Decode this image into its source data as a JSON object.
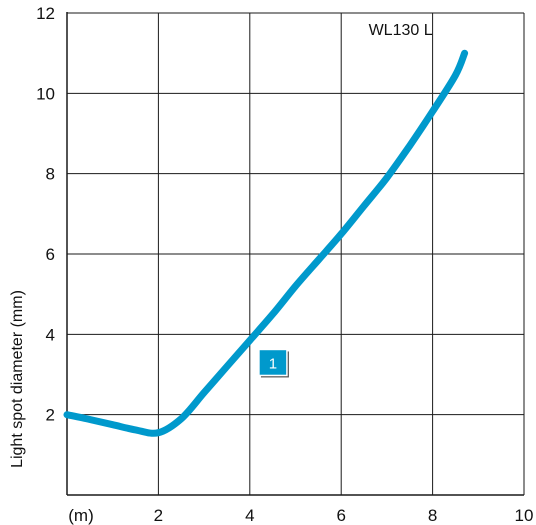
{
  "chart_data": {
    "type": "line",
    "title": "",
    "xlabel": "",
    "ylabel": "Light spot diameter (mm)",
    "xlim": [
      0,
      10
    ],
    "ylim": [
      0,
      12
    ],
    "x_ticks": [
      "(m)",
      "2",
      "4",
      "6",
      "8",
      "10"
    ],
    "y_ticks": [
      "2",
      "4",
      "6",
      "8",
      "10",
      "12"
    ],
    "grid": true,
    "series": [
      {
        "color": "#0099cc",
        "x": [
          0,
          0.5,
          1.0,
          1.5,
          2.0,
          2.5,
          3.0,
          3.5,
          4.0,
          4.5,
          5.0,
          5.5,
          6.0,
          6.5,
          7.0,
          7.5,
          8.0,
          8.5,
          8.7
        ],
        "y": [
          2.0,
          1.88,
          1.75,
          1.62,
          1.55,
          1.9,
          2.55,
          3.2,
          3.85,
          4.5,
          5.2,
          5.85,
          6.5,
          7.2,
          7.9,
          8.7,
          9.55,
          10.45,
          11.0
        ]
      }
    ],
    "annotations": [
      {
        "text": "WL130 L",
        "x": 7.3,
        "y": 11.45
      },
      {
        "text": "1",
        "x": 4.55,
        "y": 3.25,
        "style": "badge",
        "color": "#0099cc"
      }
    ]
  }
}
